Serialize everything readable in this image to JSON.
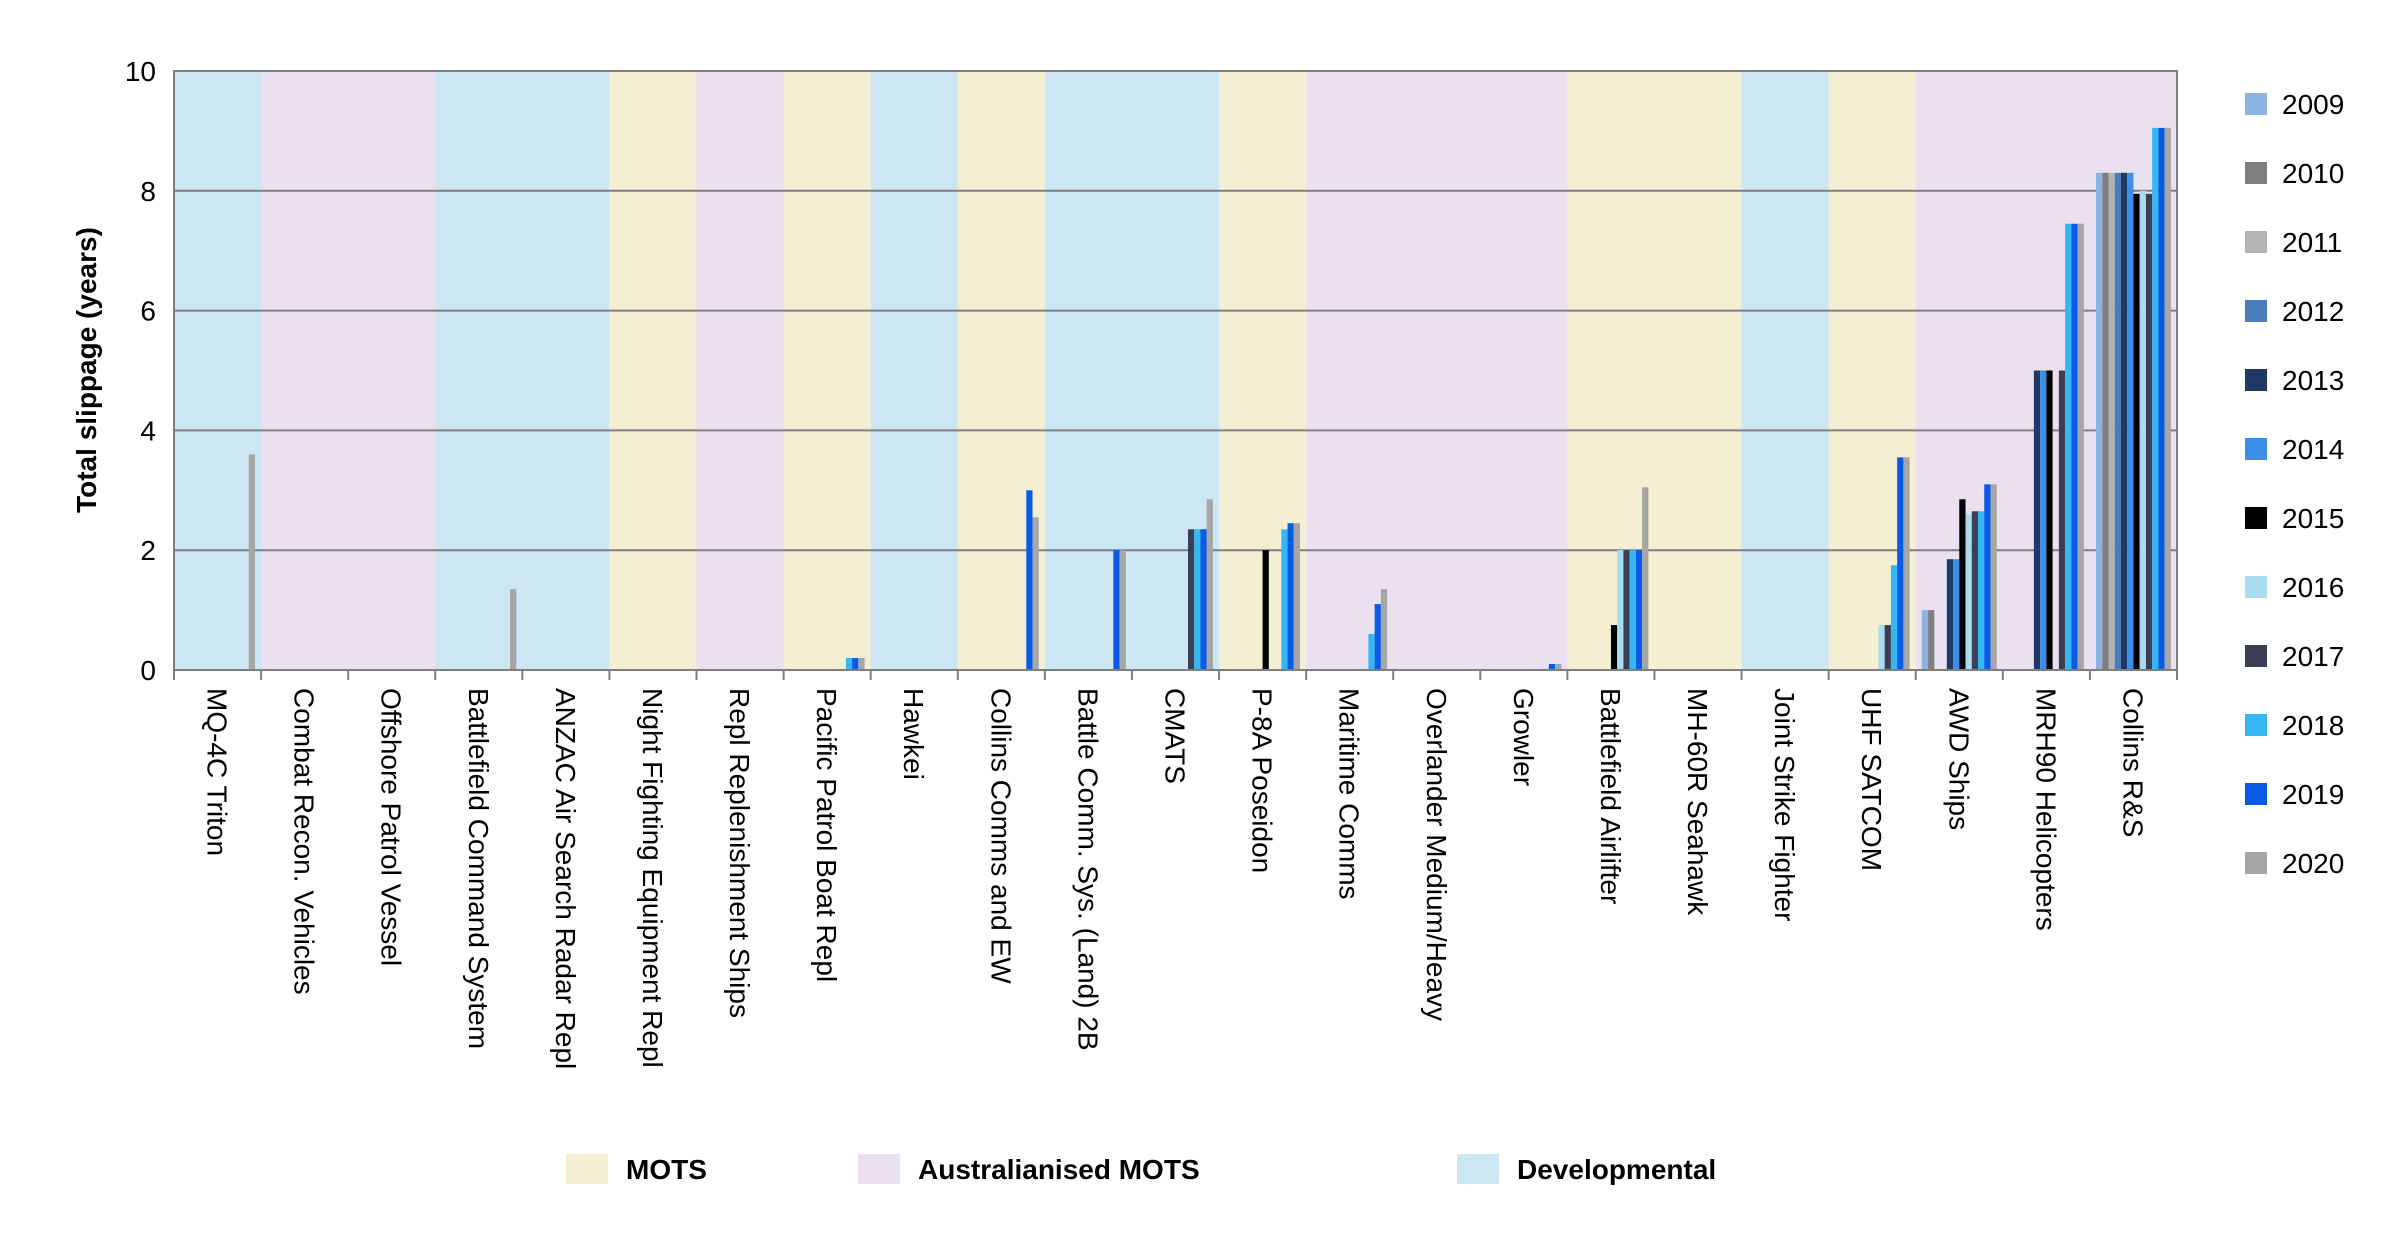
{
  "chart_data": {
    "type": "bar",
    "title": "",
    "xlabel": "",
    "ylabel": "Total slippage (years)",
    "ylim": [
      0,
      10
    ],
    "yticks": [
      "0",
      "2",
      "4",
      "6",
      "8",
      "10"
    ],
    "grid": true,
    "legend_position": "right",
    "categories": [
      "MQ-4C Triton",
      "Combat Recon. Vehicles",
      "Offshore Patrol Vessel",
      "Battlefield Command System",
      "ANZAC Air Search Radar Repl",
      "Night Fighting Equipment Repl",
      "Repl Replenishment Ships",
      "Pacific Patrol Boat Repl",
      "Hawkei",
      "Collins Comms and EW",
      "Battle Comm. Sys. (Land) 2B",
      "CMATS",
      "P-8A Poseidon",
      "Maritime Comms",
      "Overlander Medium/Heavy",
      "Growler",
      "Battlefield Airlifter",
      "MH-60R Seahawk",
      "Joint Strike Fighter",
      "UHF SATCOM",
      "AWD Ships",
      "MRH90 Helicopters",
      "Collins R&S"
    ],
    "category_types": [
      "Developmental",
      "Australianised MOTS",
      "Australianised MOTS",
      "Developmental",
      "Developmental",
      "MOTS",
      "Australianised MOTS",
      "MOTS",
      "Developmental",
      "MOTS",
      "Developmental",
      "Developmental",
      "MOTS",
      "Australianised MOTS",
      "Australianised MOTS",
      "Australianised MOTS",
      "MOTS",
      "MOTS",
      "Developmental",
      "MOTS",
      "Australianised MOTS",
      "Australianised MOTS",
      "Australianised MOTS"
    ],
    "type_colors": {
      "MOTS": "#f4efd3",
      "Australianised MOTS": "#ebe0ef",
      "Developmental": "#cde6f3"
    },
    "band_legend": [
      "MOTS",
      "Australianised MOTS",
      "Developmental"
    ],
    "series": [
      {
        "name": "2009",
        "color": "#8db3e2",
        "values": [
          null,
          null,
          null,
          null,
          null,
          null,
          null,
          null,
          null,
          null,
          null,
          null,
          null,
          null,
          null,
          null,
          null,
          null,
          null,
          null,
          1.0,
          null,
          8.3
        ]
      },
      {
        "name": "2010",
        "color": "#7f7f7f",
        "values": [
          null,
          null,
          null,
          null,
          null,
          null,
          null,
          null,
          null,
          null,
          null,
          null,
          null,
          null,
          null,
          null,
          null,
          null,
          null,
          null,
          1.0,
          null,
          8.3
        ]
      },
      {
        "name": "2011",
        "color": "#b3b3b3",
        "values": [
          null,
          null,
          null,
          null,
          null,
          null,
          null,
          null,
          null,
          null,
          null,
          null,
          null,
          null,
          null,
          null,
          null,
          null,
          null,
          null,
          null,
          null,
          8.3
        ]
      },
      {
        "name": "2012",
        "color": "#4a7ebb",
        "values": [
          null,
          null,
          null,
          null,
          null,
          null,
          null,
          null,
          null,
          null,
          null,
          null,
          null,
          null,
          null,
          null,
          null,
          null,
          null,
          null,
          null,
          null,
          8.3
        ]
      },
      {
        "name": "2013",
        "color": "#1f3864",
        "values": [
          null,
          null,
          null,
          null,
          null,
          null,
          null,
          null,
          null,
          null,
          null,
          null,
          null,
          null,
          null,
          null,
          null,
          null,
          null,
          null,
          1.85,
          5.0,
          8.3
        ]
      },
      {
        "name": "2014",
        "color": "#3c8fe8",
        "values": [
          null,
          null,
          null,
          null,
          null,
          null,
          null,
          null,
          null,
          null,
          null,
          null,
          null,
          null,
          null,
          null,
          null,
          null,
          null,
          null,
          1.85,
          5.0,
          8.3
        ]
      },
      {
        "name": "2015",
        "color": "#000000",
        "values": [
          null,
          null,
          null,
          null,
          null,
          null,
          null,
          null,
          null,
          null,
          null,
          null,
          2.0,
          null,
          null,
          null,
          0.75,
          null,
          null,
          null,
          2.85,
          5.0,
          7.95
        ]
      },
      {
        "name": "2016",
        "color": "#a9dcef",
        "values": [
          null,
          null,
          null,
          null,
          null,
          null,
          null,
          null,
          null,
          null,
          null,
          null,
          null,
          null,
          null,
          null,
          2.0,
          null,
          null,
          0.75,
          2.6,
          null,
          8.0
        ]
      },
      {
        "name": "2017",
        "color": "#3a3f55",
        "values": [
          null,
          null,
          null,
          null,
          null,
          null,
          null,
          null,
          null,
          null,
          null,
          2.35,
          null,
          null,
          null,
          null,
          2.0,
          null,
          null,
          0.75,
          2.65,
          5.0,
          7.95
        ]
      },
      {
        "name": "2018",
        "color": "#37b6f4",
        "values": [
          null,
          null,
          null,
          null,
          null,
          null,
          null,
          0.2,
          null,
          null,
          null,
          2.35,
          2.35,
          0.6,
          null,
          null,
          2.0,
          null,
          null,
          1.75,
          2.65,
          7.45,
          9.05
        ]
      },
      {
        "name": "2019",
        "color": "#0a5ae8",
        "values": [
          null,
          null,
          null,
          null,
          null,
          null,
          null,
          0.2,
          null,
          3.0,
          2.0,
          2.35,
          2.45,
          1.1,
          null,
          0.1,
          2.0,
          null,
          null,
          3.55,
          3.1,
          7.45,
          9.05
        ]
      },
      {
        "name": "2020",
        "color": "#a6a6a6",
        "values": [
          3.6,
          null,
          null,
          1.35,
          null,
          null,
          null,
          0.2,
          null,
          2.55,
          2.0,
          2.85,
          2.45,
          1.35,
          null,
          0.1,
          3.05,
          null,
          null,
          3.55,
          3.1,
          7.45,
          9.05
        ]
      }
    ]
  }
}
